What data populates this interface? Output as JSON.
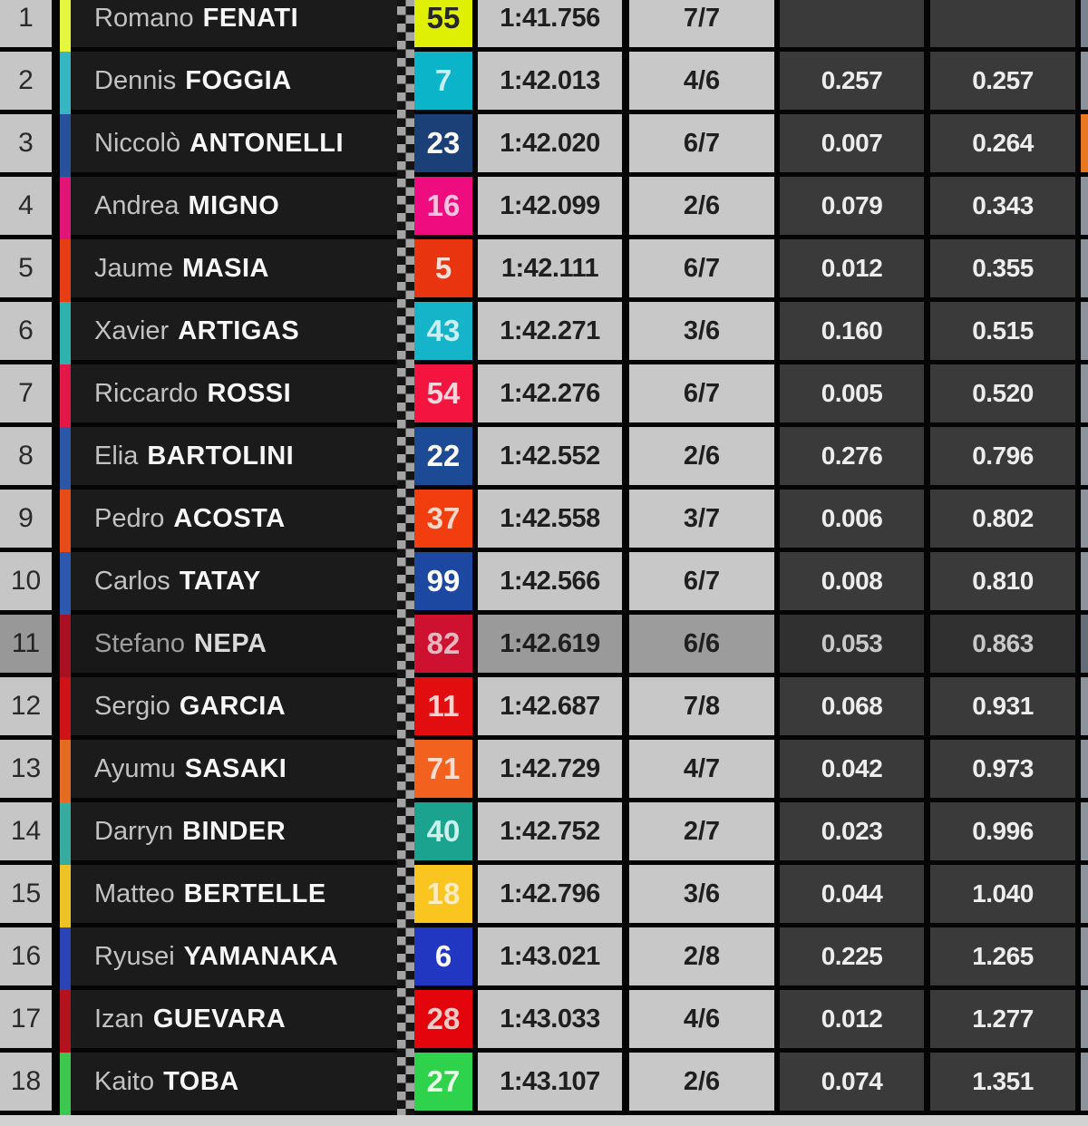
{
  "table": {
    "description": "Moto3 session classification timing table",
    "columns": [
      "position",
      "rider",
      "number",
      "best_lap_time",
      "lap",
      "gap_previous",
      "gap_first"
    ],
    "rows": [
      {
        "pos": "1",
        "first": "Romano",
        "last": "FENATI",
        "num": "55",
        "time": "1:41.756",
        "laps": "7/7",
        "gap_prev": "",
        "gap_first": "",
        "dim": false,
        "colors": {
          "stripe": "#e4f63e",
          "badge_bg": "#dff004",
          "badge_fg": "#262626",
          "sliver": "#79828f"
        }
      },
      {
        "pos": "2",
        "first": "Dennis",
        "last": "FOGGIA",
        "num": "7",
        "time": "1:42.013",
        "laps": "4/6",
        "gap_prev": "0.257",
        "gap_first": "0.257",
        "dim": false,
        "colors": {
          "stripe": "#35b6c2",
          "badge_bg": "#0bb4c9",
          "badge_fg": "#c8eef4",
          "sliver": "#8d939a"
        }
      },
      {
        "pos": "3",
        "first": "Niccolò",
        "last": "ANTONELLI",
        "num": "23",
        "time": "1:42.020",
        "laps": "6/7",
        "gap_prev": "0.007",
        "gap_first": "0.264",
        "dim": false,
        "colors": {
          "stripe": "#27519b",
          "badge_bg": "#1b4078",
          "badge_fg": "#ffffff",
          "sliver": "#e87722"
        }
      },
      {
        "pos": "4",
        "first": "Andrea",
        "last": "MIGNO",
        "num": "16",
        "time": "1:42.099",
        "laps": "2/6",
        "gap_prev": "0.079",
        "gap_first": "0.343",
        "dim": false,
        "colors": {
          "stripe": "#e01577",
          "badge_bg": "#ee0c7e",
          "badge_fg": "#f6c3de",
          "sliver": "#8d939a"
        }
      },
      {
        "pos": "5",
        "first": "Jaume",
        "last": "MASIA",
        "num": "5",
        "time": "1:42.111",
        "laps": "6/7",
        "gap_prev": "0.012",
        "gap_first": "0.355",
        "dim": false,
        "colors": {
          "stripe": "#e63d15",
          "badge_bg": "#e93410",
          "badge_fg": "#f8ded5",
          "sliver": "#8d939a"
        }
      },
      {
        "pos": "6",
        "first": "Xavier",
        "last": "ARTIGAS",
        "num": "43",
        "time": "1:42.271",
        "laps": "3/6",
        "gap_prev": "0.160",
        "gap_first": "0.515",
        "dim": false,
        "colors": {
          "stripe": "#2fb2ad",
          "badge_bg": "#16b4c9",
          "badge_fg": "#c9eff5",
          "sliver": "#8d939a"
        }
      },
      {
        "pos": "7",
        "first": "Riccardo",
        "last": "ROSSI",
        "num": "54",
        "time": "1:42.276",
        "laps": "6/7",
        "gap_prev": "0.005",
        "gap_first": "0.520",
        "dim": false,
        "colors": {
          "stripe": "#e41749",
          "badge_bg": "#f3153f",
          "badge_fg": "#fbd5dc",
          "sliver": "#8d939a"
        }
      },
      {
        "pos": "8",
        "first": "Elia",
        "last": "BARTOLINI",
        "num": "22",
        "time": "1:42.552",
        "laps": "2/6",
        "gap_prev": "0.276",
        "gap_first": "0.796",
        "dim": false,
        "colors": {
          "stripe": "#2c57a6",
          "badge_bg": "#1d4a94",
          "badge_fg": "#ffffff",
          "sliver": "#8d939a"
        }
      },
      {
        "pos": "9",
        "first": "Pedro",
        "last": "ACOSTA",
        "num": "37",
        "time": "1:42.558",
        "laps": "3/7",
        "gap_prev": "0.006",
        "gap_first": "0.802",
        "dim": false,
        "colors": {
          "stripe": "#e74b17",
          "badge_bg": "#f23e0e",
          "badge_fg": "#fad7c9",
          "sliver": "#8d939a"
        }
      },
      {
        "pos": "10",
        "first": "Carlos",
        "last": "TATAY",
        "num": "99",
        "time": "1:42.566",
        "laps": "6/7",
        "gap_prev": "0.008",
        "gap_first": "0.810",
        "dim": false,
        "colors": {
          "stripe": "#2c58ae",
          "badge_bg": "#1c48a2",
          "badge_fg": "#ffffff",
          "sliver": "#8d939a"
        }
      },
      {
        "pos": "11",
        "first": "Stefano",
        "last": "NEPA",
        "num": "82",
        "time": "1:42.619",
        "laps": "6/6",
        "gap_prev": "0.053",
        "gap_first": "0.863",
        "dim": true,
        "colors": {
          "stripe": "#aa1024",
          "badge_bg": "#ce1130",
          "badge_fg": "#e9b6c0",
          "sliver": "#646c77"
        }
      },
      {
        "pos": "12",
        "first": "Sergio",
        "last": "GARCIA",
        "num": "11",
        "time": "1:42.687",
        "laps": "7/8",
        "gap_prev": "0.068",
        "gap_first": "0.931",
        "dim": false,
        "colors": {
          "stripe": "#cf1216",
          "badge_bg": "#e20d0e",
          "badge_fg": "#f8d2d0",
          "sliver": "#8d939a"
        }
      },
      {
        "pos": "13",
        "first": "Ayumu",
        "last": "SASAKI",
        "num": "71",
        "time": "1:42.729",
        "laps": "4/7",
        "gap_prev": "0.042",
        "gap_first": "0.973",
        "dim": false,
        "colors": {
          "stripe": "#e56b23",
          "badge_bg": "#f2611e",
          "badge_fg": "#fbdcce",
          "sliver": "#8d939a"
        }
      },
      {
        "pos": "14",
        "first": "Darryn",
        "last": "BINDER",
        "num": "40",
        "time": "1:42.752",
        "laps": "2/7",
        "gap_prev": "0.023",
        "gap_first": "0.996",
        "dim": false,
        "colors": {
          "stripe": "#36ab9e",
          "badge_bg": "#1ba390",
          "badge_fg": "#c9f2ea",
          "sliver": "#8d939a"
        }
      },
      {
        "pos": "15",
        "first": "Matteo",
        "last": "BERTELLE",
        "num": "18",
        "time": "1:42.796",
        "laps": "3/6",
        "gap_prev": "0.044",
        "gap_first": "1.040",
        "dim": false,
        "colors": {
          "stripe": "#edc327",
          "badge_bg": "#fbc51f",
          "badge_fg": "#fcecc0",
          "sliver": "#8d939a"
        }
      },
      {
        "pos": "16",
        "first": "Ryusei",
        "last": "YAMANAKA",
        "num": "6",
        "time": "1:43.021",
        "laps": "2/8",
        "gap_prev": "0.225",
        "gap_first": "1.265",
        "dim": false,
        "colors": {
          "stripe": "#2b44b5",
          "badge_bg": "#2136c1",
          "badge_fg": "#ffffff",
          "sliver": "#8d939a"
        }
      },
      {
        "pos": "17",
        "first": "Izan",
        "last": "GUEVARA",
        "num": "28",
        "time": "1:43.033",
        "laps": "4/6",
        "gap_prev": "0.012",
        "gap_first": "1.277",
        "dim": false,
        "colors": {
          "stripe": "#b5121f",
          "badge_bg": "#e4050c",
          "badge_fg": "#f6cac7",
          "sliver": "#8d939a"
        }
      },
      {
        "pos": "18",
        "first": "Kaito",
        "last": "TOBA",
        "num": "27",
        "time": "1:43.107",
        "laps": "2/6",
        "gap_prev": "0.074",
        "gap_first": "1.351",
        "dim": false,
        "colors": {
          "stripe": "#3cc74f",
          "badge_bg": "#2fd24b",
          "badge_fg": "#e8ffe8",
          "sliver": "#8d939a"
        }
      }
    ]
  },
  "colors": {
    "grid_border": "#050505",
    "light_cell_bg": "#c6c6c6",
    "dark_cell_bg": "#3a3a3a",
    "name_cell_bg": "#1b1b1b",
    "checker_light": "#a4a4a4",
    "checker_dark": "#141414",
    "bottom_strip": "#d2d2d2",
    "highlight_orange_sliver": "#e87722"
  }
}
